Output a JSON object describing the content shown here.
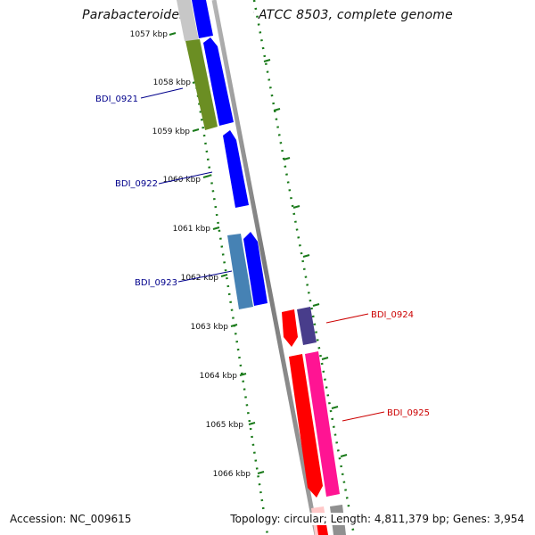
{
  "title": "Parabacteroides distasonis ATCC 8503, complete genome",
  "accession": "Accession: NC_009615",
  "summary": "Topology: circular; Length: 4,811,379 bp; Genes: 3,954",
  "kbp_ticks": [
    "1057 kbp",
    "1058 kbp",
    "1059 kbp",
    "1060 kbp",
    "1061 kbp",
    "1062 kbp",
    "1063 kbp",
    "1064 kbp",
    "1065 kbp",
    "1066 kbp"
  ],
  "gene_labels": [
    {
      "text": "BDI_0921",
      "strand": "forward"
    },
    {
      "text": "BDI_0922",
      "strand": "forward"
    },
    {
      "text": "BDI_0923",
      "strand": "forward"
    },
    {
      "text": "BDI_0924",
      "strand": "reverse"
    },
    {
      "text": "BDI_0925",
      "strand": "reverse"
    }
  ],
  "colors": {
    "forward_label": "#00008b",
    "reverse_label": "#cc0000",
    "backbone": "#8c8c8c",
    "tick_marks": "#1a7a1a",
    "forward_cds": "#0000ff",
    "reverse_cds": "#ff0000",
    "olive_feature": "#6b8e23",
    "steelblue_feature": "#4682b4",
    "slate_feature": "#483d8b",
    "pink_feature": "#ff1493",
    "grey_feature": "#b8b8b8"
  }
}
